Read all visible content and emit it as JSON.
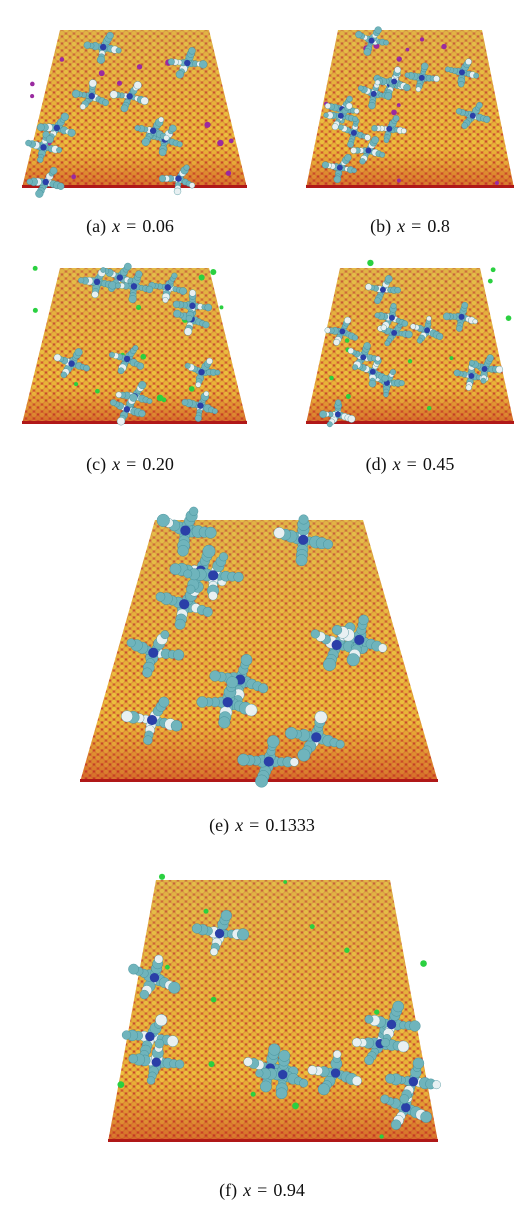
{
  "figure": {
    "panels": [
      {
        "label": "(a)",
        "variable": "x",
        "relation": "=",
        "value": "0.06"
      },
      {
        "label": "(b)",
        "variable": "x",
        "relation": "=",
        "value": "0.8"
      },
      {
        "label": "(c)",
        "variable": "x",
        "relation": "=",
        "value": "0.20"
      },
      {
        "label": "(d)",
        "variable": "x",
        "relation": "=",
        "value": "0.45"
      },
      {
        "label": "(e)",
        "variable": "x",
        "relation": "=",
        "value": "0.1333"
      },
      {
        "label": "(f)",
        "variable": "x",
        "relation": "=",
        "value": "0.94"
      }
    ]
  }
}
